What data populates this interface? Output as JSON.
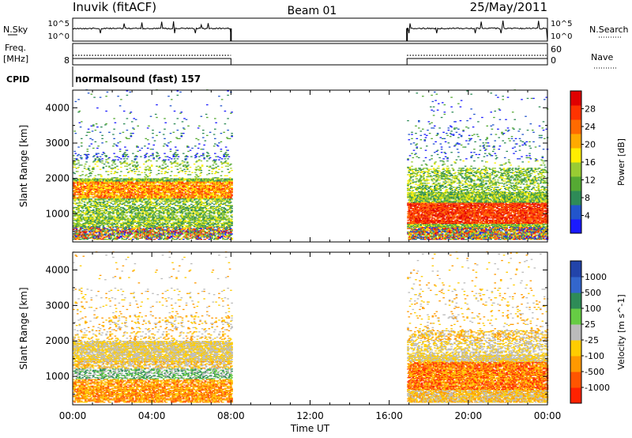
{
  "header": {
    "station": "Inuvik (fitACF)",
    "beam": "Beam 01",
    "date": "25/May/2011"
  },
  "top_panels": {
    "nsky_label": "N.Sky",
    "nsky_ticks": [
      "10^5",
      "10^0"
    ],
    "nsearch_label": "N.Search",
    "nsearch_ticks": [
      "10^5",
      "10^0"
    ],
    "freq_label": "Freq.",
    "freq_unit": "[MHz]",
    "freq_ticks": [
      "8"
    ],
    "nave_label": "Nave",
    "nave_ticks": [
      "60",
      "0"
    ],
    "cpid_label": "CPID",
    "cpid_text": "normalsound (fast) 157"
  },
  "chart_data": [
    {
      "type": "heatmap",
      "title": "",
      "ylabel": "Slant Range [km]",
      "xlabel": "Time UT",
      "x_ticks": [
        "00:00",
        "04:00",
        "08:00",
        "12:00",
        "16:00",
        "20:00",
        "00:00"
      ],
      "y_ticks": [
        1000,
        2000,
        3000,
        4000
      ],
      "ylim": [
        200,
        4500
      ],
      "xlim_hours": [
        0,
        24
      ],
      "data_intervals_hours": [
        [
          0,
          8.0
        ],
        [
          16.9,
          24
        ]
      ],
      "colorbar": {
        "label": "Power [dB]",
        "ticks": [
          "4",
          "8",
          "12",
          "16",
          "20",
          "24",
          "28"
        ],
        "colors": [
          "#1a1aff",
          "#2255cc",
          "#2e8b57",
          "#55aa33",
          "#99cc33",
          "#ffee00",
          "#ffaa00",
          "#ff6a00",
          "#ff3300",
          "#e00000"
        ]
      }
    },
    {
      "type": "heatmap",
      "title": "",
      "ylabel": "Slant Range [km]",
      "xlabel": "Time UT",
      "x_ticks": [
        "00:00",
        "04:00",
        "08:00",
        "12:00",
        "16:00",
        "20:00",
        "00:00"
      ],
      "y_ticks": [
        1000,
        2000,
        3000,
        4000
      ],
      "ylim": [
        200,
        4500
      ],
      "xlim_hours": [
        0,
        24
      ],
      "data_intervals_hours": [
        [
          0,
          8.0
        ],
        [
          16.9,
          24
        ]
      ],
      "colorbar": {
        "label": "Velocity [m s^-1]",
        "ticks": [
          "1000",
          "500",
          "100",
          "25",
          "-25",
          "-100",
          "-500",
          "-1000"
        ],
        "colors": [
          "#2244aa",
          "#3366cc",
          "#2e8b57",
          "#66cc44",
          "#bbbbbb",
          "#ffcc00",
          "#ff9900",
          "#ff5500",
          "#ff2200"
        ]
      }
    }
  ]
}
